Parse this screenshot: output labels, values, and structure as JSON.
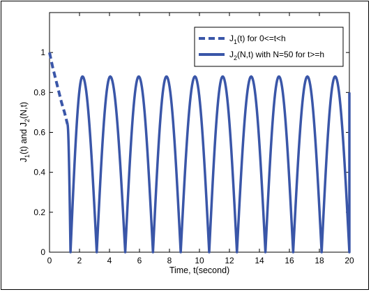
{
  "chart_data": {
    "type": "line",
    "title": "",
    "xlabel": "Time, t(second)",
    "ylabel_parts": [
      "J",
      "1",
      "(t) and J",
      "2",
      "(N,t)"
    ],
    "xlim": [
      0,
      20
    ],
    "ylim": [
      0,
      1.2
    ],
    "xticks": [
      0,
      2,
      4,
      6,
      8,
      10,
      12,
      14,
      16,
      18,
      20
    ],
    "yticks": [
      0,
      0.2,
      0.4,
      0.6,
      0.8,
      1
    ],
    "grid": false,
    "legend_position": "top-right",
    "line_color": "#3a56a8",
    "series": [
      {
        "label_parts": [
          "J",
          "1",
          "(t) for 0<=t<h"
        ],
        "style": "dashed",
        "x": [
          0,
          0.2,
          0.4,
          0.6,
          0.8,
          1.0,
          1.2
        ],
        "y": [
          1.0,
          0.93,
          0.87,
          0.81,
          0.75,
          0.7,
          0.64
        ]
      },
      {
        "label_parts": [
          "J",
          "2",
          "(N,t) with N=50 for t>=h"
        ],
        "style": "solid",
        "shape": "periodic arches",
        "start_x": 1.2,
        "start_y": 0.64,
        "peak_y": 0.88,
        "trough_y": 0,
        "peaks_x": [
          2.2,
          4.05,
          5.95,
          7.8,
          9.7,
          11.55,
          13.45,
          15.3,
          17.2,
          19.05
        ],
        "zeros_x": [
          1.4,
          3.15,
          5.05,
          6.9,
          8.75,
          10.65,
          12.5,
          14.4,
          16.25,
          18.15,
          20.0
        ],
        "end_x": 20,
        "end_y": 0.8
      }
    ]
  }
}
